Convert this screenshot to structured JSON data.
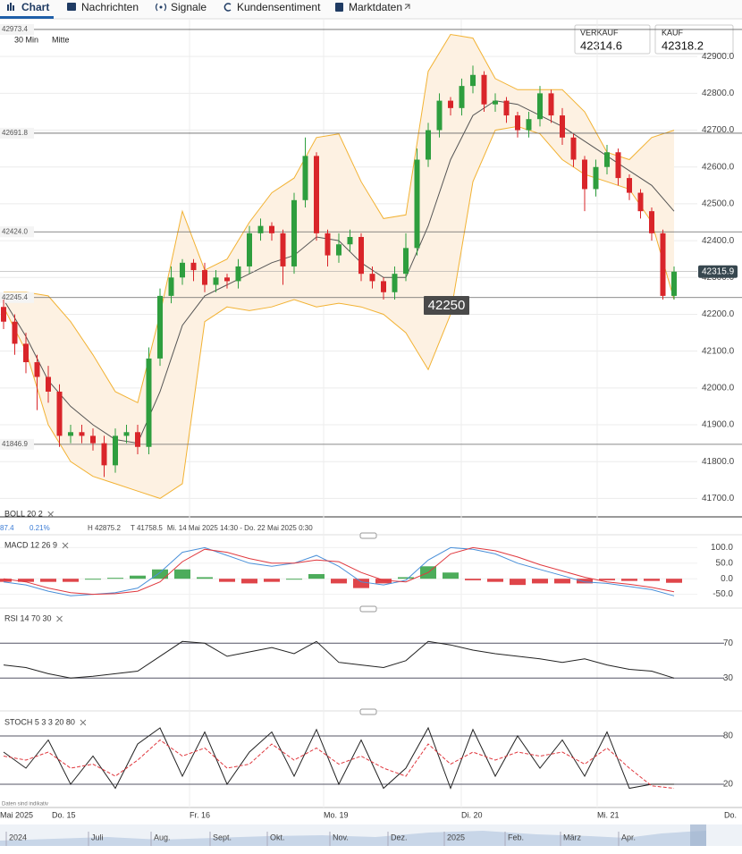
{
  "tabs": [
    "Chart",
    "Nachrichten",
    "Signale",
    "Kundensentiment",
    "Marktdaten"
  ],
  "quotes": [
    {
      "label": "VERKAUF",
      "value": "42314.6"
    },
    {
      "label": "KAUF",
      "value": "42318.2"
    }
  ],
  "interval": "30 Min",
  "price_mode": "Mitte",
  "marker_label": "42250",
  "info_row": [
    "87.4",
    "0.21%",
    "H 42875.2",
    "T 41758.5",
    "Mi. 14 Mai 2025 14:30 - Do. 22 Mai 2025 0:30"
  ],
  "x_axis_labels": [
    "Mai 2025",
    "Do. 15",
    "Fr. 16",
    "Mo. 19",
    "Di. 20",
    "Mi. 21",
    "Do."
  ],
  "navigator_labels": [
    "2024",
    "Juli",
    "Aug.",
    "Sept.",
    "Okt.",
    "Nov.",
    "Dez.",
    "2025",
    "Feb.",
    "März",
    "Apr."
  ],
  "disclaimer": "Daten sind indikativ",
  "chart_data": [
    {
      "type": "candlestick",
      "ylim": [
        41650,
        43000
      ],
      "yticks": [
        {
          "value": 42900,
          "label": "42900.0"
        },
        {
          "value": 42800,
          "label": "42800.0"
        },
        {
          "value": 42700,
          "label": "42700.0"
        },
        {
          "value": 42600,
          "label": "42600.0"
        },
        {
          "value": 42500,
          "label": "42500.0"
        },
        {
          "value": 42400,
          "label": "42400.0"
        },
        {
          "value": 42300,
          "label": "42300.0"
        },
        {
          "value": 42200,
          "label": "42200.0"
        },
        {
          "value": 42100,
          "label": "42100.0"
        },
        {
          "value": 42000,
          "label": "42000.0"
        },
        {
          "value": 41900,
          "label": "41900.0"
        },
        {
          "value": 41800,
          "label": "41800.0"
        },
        {
          "value": 41700,
          "label": "41700.0"
        }
      ],
      "grid": true,
      "up_color": "#2e9e3e",
      "down_color": "#d9252a",
      "open": [
        42220,
        42180,
        42120,
        42070,
        42030,
        41990,
        41870,
        41880,
        41870,
        41850,
        41790,
        41870,
        41880,
        41840,
        42080,
        42250,
        42300,
        42340,
        42320,
        42280,
        42300,
        42290,
        42330,
        42420,
        42440,
        42420,
        42330,
        42510,
        42630,
        42420,
        42360,
        42390,
        42410,
        42310,
        42290,
        42260,
        42310,
        42380,
        42620,
        42700,
        42780,
        42760,
        42820,
        42850,
        42770,
        42780,
        42740,
        42700,
        42730,
        42800,
        42740,
        42680,
        42620,
        42540,
        42600,
        42640,
        42570,
        42530,
        42480,
        42420,
        42250
      ],
      "high": [
        42240,
        42200,
        42150,
        42090,
        42060,
        42010,
        41900,
        41900,
        41890,
        41870,
        41890,
        41900,
        41900,
        42110,
        42270,
        42330,
        42350,
        42350,
        42340,
        42320,
        42310,
        42350,
        42440,
        42460,
        42450,
        42430,
        42530,
        42680,
        42640,
        42430,
        42420,
        42430,
        42420,
        42330,
        42300,
        42330,
        42420,
        42650,
        42720,
        42800,
        42790,
        42840,
        42875.2,
        42860,
        42800,
        42790,
        42750,
        42750,
        42820,
        42810,
        42760,
        42690,
        42630,
        42620,
        42660,
        42650,
        42580,
        42540,
        42490,
        42430,
        42330
      ],
      "low": [
        42160,
        42090,
        42040,
        41940,
        41960,
        41840,
        41850,
        41850,
        41830,
        41758.5,
        41770,
        41850,
        41820,
        41820,
        42060,
        42230,
        42280,
        42290,
        42260,
        42260,
        42270,
        42270,
        42310,
        42400,
        42400,
        42280,
        42310,
        42490,
        42400,
        42330,
        42340,
        42370,
        42290,
        42270,
        42240,
        42240,
        42290,
        42360,
        42600,
        42680,
        42740,
        42740,
        42800,
        42750,
        42750,
        42720,
        42680,
        42680,
        42710,
        42720,
        42660,
        42600,
        42480,
        42520,
        42580,
        42550,
        42510,
        42460,
        42400,
        42240,
        42240
      ],
      "close": [
        42180,
        42120,
        42070,
        42030,
        41990,
        41870,
        41880,
        41870,
        41850,
        41790,
        41870,
        41880,
        41840,
        42080,
        42250,
        42300,
        42340,
        42320,
        42280,
        42300,
        42290,
        42330,
        42420,
        42440,
        42420,
        42330,
        42510,
        42630,
        42420,
        42360,
        42390,
        42410,
        42310,
        42290,
        42260,
        42310,
        42380,
        42620,
        42700,
        42780,
        42760,
        42820,
        42850,
        42770,
        42780,
        42740,
        42700,
        42730,
        42800,
        42740,
        42680,
        42620,
        42540,
        42600,
        42640,
        42570,
        42530,
        42480,
        42420,
        42250,
        42316
      ],
      "bollinger": {
        "label": "BOLL 20 2",
        "color": "#f2b233",
        "middle_color": "#555555",
        "fill": "#fdf1e2",
        "middle": [
          42240,
          42140,
          42020,
          41950,
          41900,
          41860,
          41850,
          41990,
          42170,
          42250,
          42280,
          42310,
          42340,
          42360,
          42410,
          42400,
          42340,
          42300,
          42300,
          42440,
          42620,
          42740,
          42780,
          42770,
          42740,
          42710,
          42670,
          42630,
          42590,
          42550,
          42480
        ],
        "upper": [
          42260,
          42260,
          42250,
          42180,
          42090,
          41990,
          41960,
          42200,
          42480,
          42320,
          42350,
          42450,
          42530,
          42570,
          42680,
          42690,
          42560,
          42460,
          42470,
          42860,
          42960,
          42950,
          42840,
          42810,
          42810,
          42810,
          42750,
          42640,
          42620,
          42680,
          42700
        ],
        "lower": [
          42220,
          42100,
          41900,
          41800,
          41760,
          41740,
          41720,
          41700,
          41740,
          42180,
          42220,
          42210,
          42220,
          42240,
          42220,
          42230,
          42220,
          42200,
          42150,
          42050,
          42200,
          42560,
          42700,
          42710,
          42690,
          42620,
          42580,
          42560,
          42540,
          42450,
          42240
        ]
      },
      "levels": [
        {
          "value": 42973.4,
          "label": "42973.4"
        },
        {
          "value": 42691.8,
          "label": "42691.8"
        },
        {
          "value": 42424.0,
          "label": "42424.0"
        },
        {
          "value": 42245.4,
          "label": "42245.4"
        },
        {
          "value": 41846.9,
          "label": "41846.9"
        }
      ],
      "current_price": {
        "value": 42315.9,
        "label": "42315.9"
      }
    },
    {
      "type": "macd",
      "label": "MACD 12 26 9",
      "ylim": [
        -80,
        130
      ],
      "yticks": [
        {
          "value": 100,
          "label": "100.0"
        },
        {
          "value": 50,
          "label": "50.0"
        },
        {
          "value": 0,
          "label": "0.0"
        },
        {
          "value": -50,
          "label": "-50.0"
        }
      ],
      "macd_color": "#4a90d9",
      "signal_color": "#e0383e",
      "up_color": "#2e9e3e",
      "down_color": "#d9252a",
      "macd": [
        -10,
        -20,
        -40,
        -55,
        -50,
        -45,
        -30,
        20,
        85,
        100,
        75,
        50,
        40,
        50,
        75,
        40,
        -10,
        -20,
        -5,
        60,
        100,
        95,
        80,
        50,
        30,
        10,
        -10,
        -15,
        -25,
        -35,
        -55
      ],
      "signal": [
        0,
        -10,
        -30,
        -45,
        -50,
        -48,
        -40,
        -10,
        55,
        95,
        85,
        65,
        50,
        50,
        60,
        55,
        20,
        -5,
        -10,
        20,
        80,
        100,
        90,
        70,
        45,
        25,
        5,
        -10,
        -18,
        -28,
        -42
      ],
      "histogram": [
        -10,
        -10,
        -10,
        -10,
        0,
        3,
        10,
        30,
        30,
        5,
        -10,
        -15,
        -10,
        0,
        15,
        -15,
        -30,
        -15,
        5,
        40,
        20,
        -5,
        -10,
        -20,
        -15,
        -15,
        -15,
        -5,
        -7,
        -7,
        -13
      ]
    },
    {
      "type": "line",
      "label": "RSI 14 70 30",
      "ylim": [
        0,
        100
      ],
      "yticks": [
        70,
        30
      ],
      "color": "#222222",
      "values": [
        45,
        42,
        35,
        30,
        32,
        35,
        38,
        55,
        72,
        70,
        55,
        60,
        65,
        58,
        72,
        48,
        45,
        42,
        50,
        72,
        68,
        62,
        58,
        55,
        52,
        48,
        52,
        45,
        40,
        38,
        30
      ]
    },
    {
      "type": "stochastic",
      "label": "STOCH 5 3 3 20 80",
      "ylim": [
        0,
        100
      ],
      "yticks": [
        80,
        20
      ],
      "k_color": "#222222",
      "d_color": "#e0383e",
      "k": [
        60,
        40,
        75,
        20,
        55,
        15,
        70,
        90,
        30,
        85,
        20,
        60,
        85,
        30,
        88,
        20,
        75,
        15,
        40,
        90,
        15,
        88,
        30,
        80,
        40,
        75,
        30,
        85,
        15,
        20,
        20
      ],
      "d": [
        55,
        50,
        60,
        40,
        45,
        30,
        50,
        75,
        55,
        65,
        40,
        45,
        70,
        50,
        65,
        45,
        55,
        40,
        30,
        70,
        45,
        60,
        50,
        60,
        55,
        60,
        45,
        65,
        40,
        18,
        15
      ]
    }
  ]
}
